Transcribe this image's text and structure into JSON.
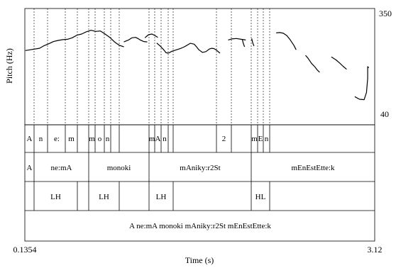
{
  "pitch_axis": {
    "label": "Pitch (Hz)",
    "top_label": "350",
    "bottom_label": "40"
  },
  "time_axis": {
    "label": "Time (s)",
    "start_label": "0.1354",
    "end_label": "3.12"
  },
  "tiers": {
    "segments": [
      "A",
      "n",
      "e:",
      "m",
      "m",
      "o",
      "n",
      "m",
      "A",
      "n",
      "2",
      "m",
      "E",
      "n"
    ],
    "words": [
      "A",
      "ne:mA",
      "monoki",
      "mAniky:r2St",
      "mEnEstEtte:k"
    ],
    "tones": [
      "LH",
      "LH",
      "LH",
      "HL"
    ],
    "sentence": "A ne:mA monoki mAniky:r2St mEnEstEtte:k"
  },
  "chart_data": {
    "type": "line",
    "title": "",
    "xlabel": "Time (s)",
    "ylabel": "Pitch (Hz)",
    "xlim": [
      0.1354,
      3.12
    ],
    "ylim": [
      40,
      350
    ],
    "series": [
      {
        "values": [
          [
            0.14,
            238
          ],
          [
            0.2,
            241
          ],
          [
            0.26,
            244
          ],
          [
            0.3,
            251
          ],
          [
            0.34,
            256
          ],
          [
            0.38,
            262
          ],
          [
            0.42,
            265
          ],
          [
            0.46,
            267
          ],
          [
            0.5,
            268
          ],
          [
            0.54,
            272
          ],
          [
            0.58,
            279
          ],
          [
            0.62,
            282
          ],
          [
            0.66,
            288
          ],
          [
            0.7,
            292
          ],
          [
            0.74,
            289
          ],
          [
            0.78,
            290
          ],
          [
            0.82,
            282
          ],
          [
            0.86,
            273
          ],
          [
            0.9,
            261
          ],
          [
            0.94,
            252
          ],
          [
            0.98,
            248
          ]
        ]
      },
      {
        "values": [
          [
            0.98,
            261
          ],
          [
            1.02,
            266
          ],
          [
            1.05,
            272
          ],
          [
            1.08,
            273
          ],
          [
            1.1,
            270
          ],
          [
            1.12,
            266
          ],
          [
            1.15,
            262
          ],
          [
            1.18,
            261
          ]
        ]
      },
      {
        "values": [
          [
            1.16,
            272
          ],
          [
            1.19,
            280
          ],
          [
            1.22,
            282
          ],
          [
            1.25,
            277
          ],
          [
            1.27,
            273
          ]
        ]
      },
      {
        "values": [
          [
            1.26,
            258
          ],
          [
            1.29,
            250
          ],
          [
            1.32,
            240
          ],
          [
            1.34,
            232
          ],
          [
            1.36,
            231
          ]
        ]
      },
      {
        "values": [
          [
            1.36,
            231
          ],
          [
            1.39,
            236
          ],
          [
            1.43,
            240
          ],
          [
            1.46,
            243
          ],
          [
            1.49,
            247
          ],
          [
            1.52,
            252
          ],
          [
            1.55,
            258
          ]
        ]
      },
      {
        "values": [
          [
            1.55,
            257
          ],
          [
            1.58,
            255
          ],
          [
            1.6,
            248
          ],
          [
            1.62,
            240
          ],
          [
            1.65,
            233
          ],
          [
            1.68,
            235
          ],
          [
            1.71,
            242
          ],
          [
            1.73,
            244
          ],
          [
            1.75,
            243
          ],
          [
            1.77,
            239
          ],
          [
            1.8,
            231
          ]
        ]
      },
      {
        "values": [
          [
            1.87,
            266
          ],
          [
            1.9,
            269
          ],
          [
            1.94,
            270
          ],
          [
            1.98,
            268
          ],
          [
            2.02,
            266
          ]
        ]
      },
      {
        "values": [
          [
            1.99,
            268
          ],
          [
            2.0,
            256
          ],
          [
            2.01,
            248
          ]
        ]
      },
      {
        "values": [
          [
            2.07,
            270
          ],
          [
            2.08,
            258
          ],
          [
            2.09,
            250
          ]
        ]
      },
      {
        "values": [
          [
            2.28,
            285
          ],
          [
            2.31,
            286
          ],
          [
            2.34,
            284
          ],
          [
            2.37,
            278
          ],
          [
            2.4,
            266
          ],
          [
            2.43,
            252
          ],
          [
            2.45,
            240
          ]
        ]
      },
      {
        "values": [
          [
            2.53,
            225
          ],
          [
            2.55,
            218
          ],
          [
            2.58,
            204
          ],
          [
            2.61,
            194
          ],
          [
            2.63,
            186
          ],
          [
            2.65,
            180
          ]
        ]
      },
      {
        "values": [
          [
            2.75,
            221
          ],
          [
            2.79,
            213
          ],
          [
            2.82,
            205
          ],
          [
            2.85,
            196
          ],
          [
            2.88,
            188
          ]
        ]
      },
      {
        "values": [
          [
            2.95,
            115
          ],
          [
            2.99,
            108
          ],
          [
            3.03,
            107
          ],
          [
            3.05,
            126
          ],
          [
            3.06,
            164
          ],
          [
            3.06,
            195
          ],
          [
            3.07,
            192
          ]
        ]
      }
    ]
  }
}
